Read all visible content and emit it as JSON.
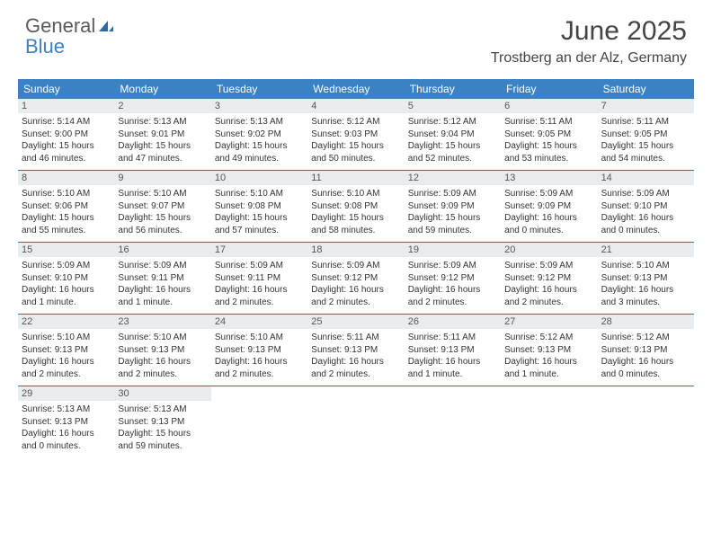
{
  "colors": {
    "header_blue": "#3b82c4",
    "row_divider": "#3b6fa0",
    "daynum_bg": "#e9ecef",
    "text": "#333333",
    "title_text": "#444444",
    "logo_gray": "#5a5a5a"
  },
  "logo": {
    "word1": "General",
    "word2": "Blue"
  },
  "title": "June 2025",
  "location": "Trostberg an der Alz, Germany",
  "day_names": [
    "Sunday",
    "Monday",
    "Tuesday",
    "Wednesday",
    "Thursday",
    "Friday",
    "Saturday"
  ],
  "weeks": [
    [
      {
        "n": "1",
        "sr": "Sunrise: 5:14 AM",
        "ss": "Sunset: 9:00 PM",
        "d1": "Daylight: 15 hours",
        "d2": "and 46 minutes."
      },
      {
        "n": "2",
        "sr": "Sunrise: 5:13 AM",
        "ss": "Sunset: 9:01 PM",
        "d1": "Daylight: 15 hours",
        "d2": "and 47 minutes."
      },
      {
        "n": "3",
        "sr": "Sunrise: 5:13 AM",
        "ss": "Sunset: 9:02 PM",
        "d1": "Daylight: 15 hours",
        "d2": "and 49 minutes."
      },
      {
        "n": "4",
        "sr": "Sunrise: 5:12 AM",
        "ss": "Sunset: 9:03 PM",
        "d1": "Daylight: 15 hours",
        "d2": "and 50 minutes."
      },
      {
        "n": "5",
        "sr": "Sunrise: 5:12 AM",
        "ss": "Sunset: 9:04 PM",
        "d1": "Daylight: 15 hours",
        "d2": "and 52 minutes."
      },
      {
        "n": "6",
        "sr": "Sunrise: 5:11 AM",
        "ss": "Sunset: 9:05 PM",
        "d1": "Daylight: 15 hours",
        "d2": "and 53 minutes."
      },
      {
        "n": "7",
        "sr": "Sunrise: 5:11 AM",
        "ss": "Sunset: 9:05 PM",
        "d1": "Daylight: 15 hours",
        "d2": "and 54 minutes."
      }
    ],
    [
      {
        "n": "8",
        "sr": "Sunrise: 5:10 AM",
        "ss": "Sunset: 9:06 PM",
        "d1": "Daylight: 15 hours",
        "d2": "and 55 minutes."
      },
      {
        "n": "9",
        "sr": "Sunrise: 5:10 AM",
        "ss": "Sunset: 9:07 PM",
        "d1": "Daylight: 15 hours",
        "d2": "and 56 minutes."
      },
      {
        "n": "10",
        "sr": "Sunrise: 5:10 AM",
        "ss": "Sunset: 9:08 PM",
        "d1": "Daylight: 15 hours",
        "d2": "and 57 minutes."
      },
      {
        "n": "11",
        "sr": "Sunrise: 5:10 AM",
        "ss": "Sunset: 9:08 PM",
        "d1": "Daylight: 15 hours",
        "d2": "and 58 minutes."
      },
      {
        "n": "12",
        "sr": "Sunrise: 5:09 AM",
        "ss": "Sunset: 9:09 PM",
        "d1": "Daylight: 15 hours",
        "d2": "and 59 minutes."
      },
      {
        "n": "13",
        "sr": "Sunrise: 5:09 AM",
        "ss": "Sunset: 9:09 PM",
        "d1": "Daylight: 16 hours",
        "d2": "and 0 minutes."
      },
      {
        "n": "14",
        "sr": "Sunrise: 5:09 AM",
        "ss": "Sunset: 9:10 PM",
        "d1": "Daylight: 16 hours",
        "d2": "and 0 minutes."
      }
    ],
    [
      {
        "n": "15",
        "sr": "Sunrise: 5:09 AM",
        "ss": "Sunset: 9:10 PM",
        "d1": "Daylight: 16 hours",
        "d2": "and 1 minute."
      },
      {
        "n": "16",
        "sr": "Sunrise: 5:09 AM",
        "ss": "Sunset: 9:11 PM",
        "d1": "Daylight: 16 hours",
        "d2": "and 1 minute."
      },
      {
        "n": "17",
        "sr": "Sunrise: 5:09 AM",
        "ss": "Sunset: 9:11 PM",
        "d1": "Daylight: 16 hours",
        "d2": "and 2 minutes."
      },
      {
        "n": "18",
        "sr": "Sunrise: 5:09 AM",
        "ss": "Sunset: 9:12 PM",
        "d1": "Daylight: 16 hours",
        "d2": "and 2 minutes."
      },
      {
        "n": "19",
        "sr": "Sunrise: 5:09 AM",
        "ss": "Sunset: 9:12 PM",
        "d1": "Daylight: 16 hours",
        "d2": "and 2 minutes."
      },
      {
        "n": "20",
        "sr": "Sunrise: 5:09 AM",
        "ss": "Sunset: 9:12 PM",
        "d1": "Daylight: 16 hours",
        "d2": "and 2 minutes."
      },
      {
        "n": "21",
        "sr": "Sunrise: 5:10 AM",
        "ss": "Sunset: 9:13 PM",
        "d1": "Daylight: 16 hours",
        "d2": "and 3 minutes."
      }
    ],
    [
      {
        "n": "22",
        "sr": "Sunrise: 5:10 AM",
        "ss": "Sunset: 9:13 PM",
        "d1": "Daylight: 16 hours",
        "d2": "and 2 minutes."
      },
      {
        "n": "23",
        "sr": "Sunrise: 5:10 AM",
        "ss": "Sunset: 9:13 PM",
        "d1": "Daylight: 16 hours",
        "d2": "and 2 minutes."
      },
      {
        "n": "24",
        "sr": "Sunrise: 5:10 AM",
        "ss": "Sunset: 9:13 PM",
        "d1": "Daylight: 16 hours",
        "d2": "and 2 minutes."
      },
      {
        "n": "25",
        "sr": "Sunrise: 5:11 AM",
        "ss": "Sunset: 9:13 PM",
        "d1": "Daylight: 16 hours",
        "d2": "and 2 minutes."
      },
      {
        "n": "26",
        "sr": "Sunrise: 5:11 AM",
        "ss": "Sunset: 9:13 PM",
        "d1": "Daylight: 16 hours",
        "d2": "and 1 minute."
      },
      {
        "n": "27",
        "sr": "Sunrise: 5:12 AM",
        "ss": "Sunset: 9:13 PM",
        "d1": "Daylight: 16 hours",
        "d2": "and 1 minute."
      },
      {
        "n": "28",
        "sr": "Sunrise: 5:12 AM",
        "ss": "Sunset: 9:13 PM",
        "d1": "Daylight: 16 hours",
        "d2": "and 0 minutes."
      }
    ],
    [
      {
        "n": "29",
        "sr": "Sunrise: 5:13 AM",
        "ss": "Sunset: 9:13 PM",
        "d1": "Daylight: 16 hours",
        "d2": "and 0 minutes."
      },
      {
        "n": "30",
        "sr": "Sunrise: 5:13 AM",
        "ss": "Sunset: 9:13 PM",
        "d1": "Daylight: 15 hours",
        "d2": "and 59 minutes."
      },
      null,
      null,
      null,
      null,
      null
    ]
  ]
}
